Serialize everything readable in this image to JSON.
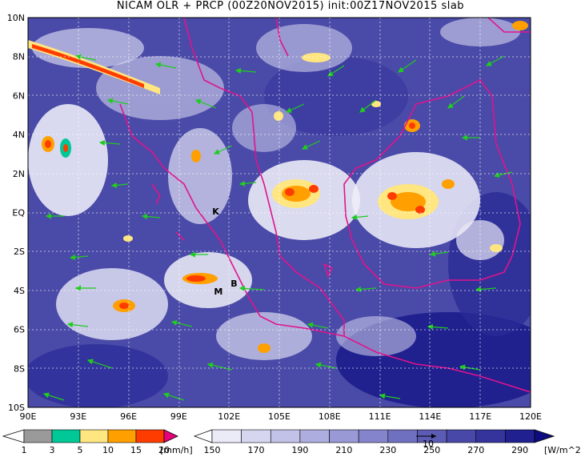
{
  "title": "NICAM OLR + PRCP (00Z20NOV2015) init:00Z17NOV2015 slab",
  "map": {
    "lon_range": [
      90,
      120
    ],
    "lat_range": [
      -10,
      10
    ],
    "x_ticks": [
      "90E",
      "93E",
      "96E",
      "99E",
      "102E",
      "105E",
      "108E",
      "111E",
      "114E",
      "117E",
      "120E"
    ],
    "y_ticks": [
      "10N",
      "8N",
      "6N",
      "4N",
      "2N",
      "EQ",
      "2S",
      "4S",
      "6S",
      "8S",
      "10S"
    ],
    "station_labels": [
      {
        "text": "K",
        "lon": 101.0,
        "lat": -0.1
      },
      {
        "text": "M",
        "lon": 101.1,
        "lat": -4.2
      },
      {
        "text": "B",
        "lon": 102.1,
        "lat": -3.8
      }
    ],
    "vector_reference_label": "10",
    "colors": {
      "olr_dark": "#1a1a8a",
      "olr_mid": "#5a5cb8",
      "olr_light": "#b8b8e6",
      "coast": "#e0148c",
      "wind": "#20cc20"
    }
  },
  "precip_colorbar": {
    "unit": "[mm/h]",
    "labels": [
      "1",
      "3",
      "5",
      "10",
      "15",
      "20"
    ],
    "colors": [
      "#ffffff",
      "#9a9a9a",
      "#00c896",
      "#ffe680",
      "#ffa000",
      "#ff3c00",
      "#e6007a"
    ]
  },
  "olr_colorbar": {
    "unit": "[W/m^2]",
    "labels": [
      "150",
      "170",
      "190",
      "210",
      "230",
      "250",
      "270",
      "290"
    ],
    "colors": [
      "#ffffff",
      "#ebebf8",
      "#d6d6f0",
      "#c2c2e8",
      "#adade0",
      "#9999d6",
      "#8484cc",
      "#7070c0",
      "#5c5cb4",
      "#4848a8",
      "#34349c",
      "#202090",
      "#0c0c80"
    ]
  }
}
